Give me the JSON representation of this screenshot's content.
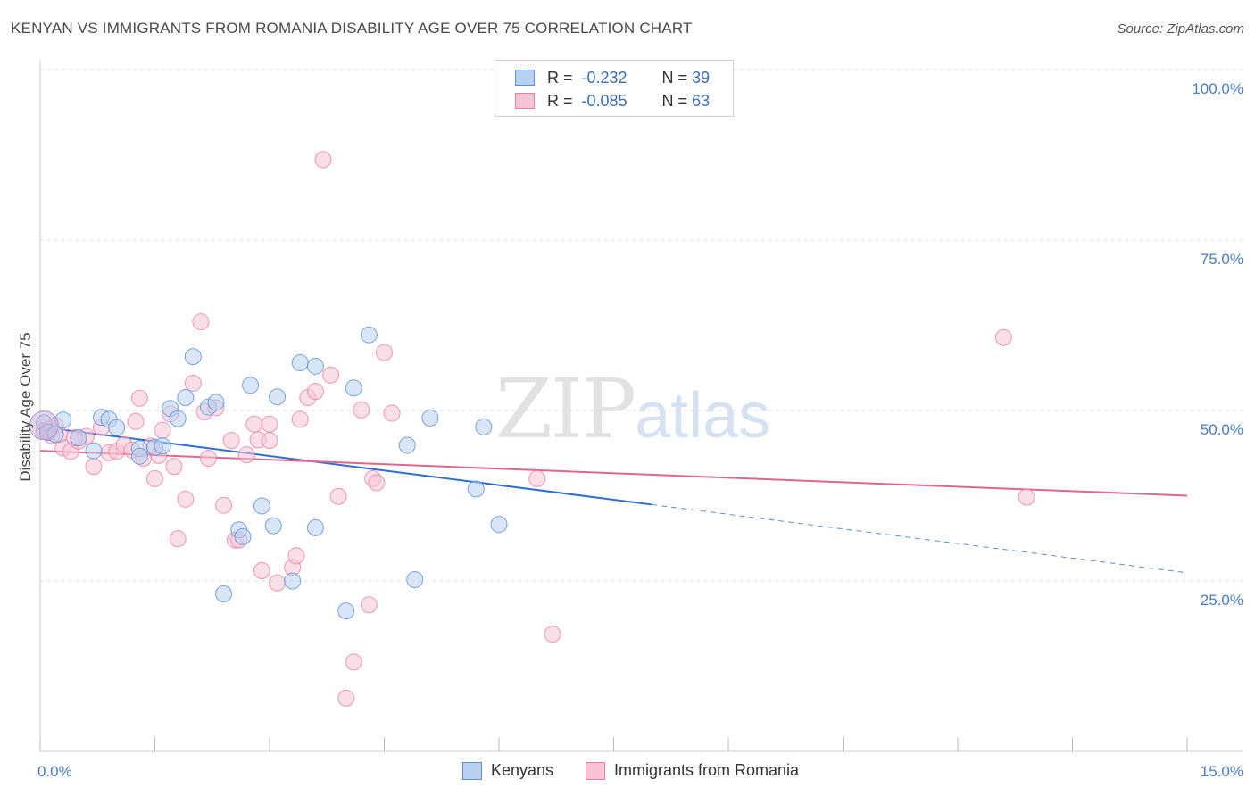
{
  "title": "KENYAN VS IMMIGRANTS FROM ROMANIA DISABILITY AGE OVER 75 CORRELATION CHART",
  "source": "Source: ZipAtlas.com",
  "watermark_zip": "ZIP",
  "watermark_atlas": "atlas",
  "legend": {
    "r_label": "R =",
    "n_label": "N =",
    "series": [
      {
        "r": "-0.232",
        "n": "39"
      },
      {
        "r": "-0.085",
        "n": "63"
      }
    ]
  },
  "bottom_legend": [
    "Kenyans",
    "Immigrants from Romania"
  ],
  "chart_data": {
    "type": "scatter",
    "title": "KENYAN VS IMMIGRANTS FROM ROMANIA DISABILITY AGE OVER 75 CORRELATION CHART",
    "xlabel": "",
    "ylabel": "Disability Age Over 75",
    "xlim": [
      0,
      15
    ],
    "ylim": [
      0,
      100
    ],
    "x_tick_labels": [
      "0.0%",
      "15.0%"
    ],
    "y_ticks": [
      25,
      50,
      75,
      100
    ],
    "y_tick_labels": [
      "25.0%",
      "50.0%",
      "75.0%",
      "100.0%"
    ],
    "grid": true,
    "series": [
      {
        "name": "Kenyans",
        "color": "#5b8fd6",
        "fill": "#b9d1f0",
        "trend": {
          "x0": 0,
          "y0": 47.6,
          "x1": 8.0,
          "y1": 36.2,
          "dashed_to_x": 15.0,
          "dashed_to_y": 26.2
        },
        "points": [
          [
            0.05,
            48.2
          ],
          [
            0.1,
            46.8
          ],
          [
            0.2,
            46.5
          ],
          [
            0.3,
            48.6
          ],
          [
            0.5,
            46.0
          ],
          [
            0.7,
            44.1
          ],
          [
            0.8,
            49.0
          ],
          [
            0.9,
            48.7
          ],
          [
            1.0,
            47.5
          ],
          [
            1.3,
            44.4
          ],
          [
            1.5,
            44.6
          ],
          [
            1.6,
            44.8
          ],
          [
            1.7,
            50.3
          ],
          [
            1.8,
            48.8
          ],
          [
            1.9,
            51.9
          ],
          [
            2.0,
            57.9
          ],
          [
            2.2,
            50.5
          ],
          [
            2.3,
            51.2
          ],
          [
            2.4,
            23.1
          ],
          [
            2.6,
            32.5
          ],
          [
            2.65,
            31.5
          ],
          [
            2.75,
            53.7
          ],
          [
            2.9,
            36.0
          ],
          [
            3.05,
            33.1
          ],
          [
            3.1,
            52.0
          ],
          [
            3.3,
            25.0
          ],
          [
            3.4,
            57.0
          ],
          [
            3.6,
            56.5
          ],
          [
            3.6,
            32.8
          ],
          [
            4.0,
            20.6
          ],
          [
            4.1,
            53.3
          ],
          [
            4.3,
            61.1
          ],
          [
            4.8,
            44.9
          ],
          [
            4.9,
            25.2
          ],
          [
            5.1,
            48.9
          ],
          [
            5.7,
            38.5
          ],
          [
            5.8,
            47.6
          ],
          [
            6.0,
            33.3
          ],
          [
            1.3,
            43.3
          ]
        ]
      },
      {
        "name": "Immigrants from Romania",
        "color": "#e77fa3",
        "fill": "#f7c4d5",
        "trend": {
          "x0": 0,
          "y0": 44.1,
          "x1": 15.0,
          "y1": 37.5
        },
        "points": [
          [
            0.05,
            47.0
          ],
          [
            0.1,
            47.2
          ],
          [
            0.15,
            46.3
          ],
          [
            0.2,
            47.8
          ],
          [
            0.3,
            44.5
          ],
          [
            0.4,
            44.0
          ],
          [
            0.5,
            45.5
          ],
          [
            0.6,
            46.2
          ],
          [
            0.7,
            41.8
          ],
          [
            0.8,
            47.5
          ],
          [
            0.9,
            43.8
          ],
          [
            1.0,
            44.0
          ],
          [
            1.1,
            45.0
          ],
          [
            1.2,
            44.2
          ],
          [
            1.25,
            48.4
          ],
          [
            1.3,
            51.8
          ],
          [
            1.35,
            43.0
          ],
          [
            1.5,
            40.0
          ],
          [
            1.55,
            43.4
          ],
          [
            1.6,
            47.1
          ],
          [
            1.7,
            49.5
          ],
          [
            1.75,
            41.8
          ],
          [
            1.8,
            31.2
          ],
          [
            1.9,
            37.0
          ],
          [
            2.0,
            54.0
          ],
          [
            2.1,
            63.0
          ],
          [
            2.15,
            49.8
          ],
          [
            2.2,
            43.0
          ],
          [
            2.3,
            50.4
          ],
          [
            2.4,
            36.1
          ],
          [
            2.5,
            45.6
          ],
          [
            2.55,
            31.0
          ],
          [
            2.6,
            31.0
          ],
          [
            2.7,
            43.5
          ],
          [
            2.8,
            48.0
          ],
          [
            2.85,
            45.7
          ],
          [
            2.9,
            26.5
          ],
          [
            3.0,
            48.0
          ],
          [
            3.1,
            24.7
          ],
          [
            3.3,
            27.0
          ],
          [
            3.35,
            28.7
          ],
          [
            3.4,
            48.7
          ],
          [
            3.5,
            51.9
          ],
          [
            3.6,
            52.8
          ],
          [
            3.7,
            86.8
          ],
          [
            3.8,
            55.2
          ],
          [
            3.9,
            37.4
          ],
          [
            4.0,
            7.8
          ],
          [
            4.1,
            13.1
          ],
          [
            4.2,
            50.1
          ],
          [
            4.3,
            21.5
          ],
          [
            4.35,
            40.0
          ],
          [
            4.4,
            39.4
          ],
          [
            4.5,
            58.5
          ],
          [
            4.6,
            49.6
          ],
          [
            6.5,
            40.0
          ],
          [
            6.7,
            17.2
          ],
          [
            12.6,
            60.7
          ],
          [
            12.9,
            37.3
          ],
          [
            0.25,
            46.5
          ],
          [
            0.45,
            46.0
          ],
          [
            1.45,
            44.8
          ],
          [
            3.0,
            45.6
          ]
        ]
      }
    ]
  }
}
